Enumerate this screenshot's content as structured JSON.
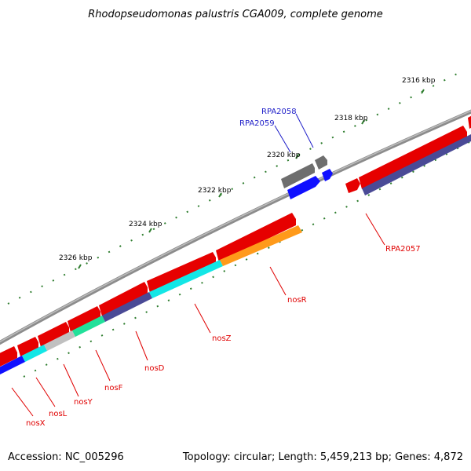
{
  "title": "Rhodopseudomonas palustris CGA009, complete genome",
  "footer": {
    "accession": "Accession: NC_005296",
    "summary": "Topology: circular; Length: 5,459,213 bp; Genes: 4,872"
  },
  "scale_labels": [
    "2316 kbp",
    "2318 kbp",
    "2320 kbp",
    "2322 kbp",
    "2324 kbp",
    "2326 kbp"
  ],
  "gene_labels": {
    "rpa2058": "RPA2058",
    "rpa2059": "RPA2059",
    "rpa2057": "RPA2057",
    "nosR": "nosR",
    "nosZ": "nosZ",
    "nosD": "nosD",
    "nosF": "nosF",
    "nosY": "nosY",
    "nosL": "nosL",
    "nosX": "nosX"
  },
  "colors": {
    "backbone": "#8c8c8c",
    "cds": "#e60000",
    "tick": "#2e7d2e",
    "forward_label": "#e00000",
    "reverse_label": "#1c1cc8",
    "cog_cyan": "#13e6e6",
    "cog_navy": "#4a4a96",
    "cog_orange": "#ff9a1a",
    "cog_green": "#22e09a",
    "cog_gray": "#c0c0c0",
    "cog_blue": "#1010ff",
    "cog_darkgray": "#6e6e6e"
  }
}
